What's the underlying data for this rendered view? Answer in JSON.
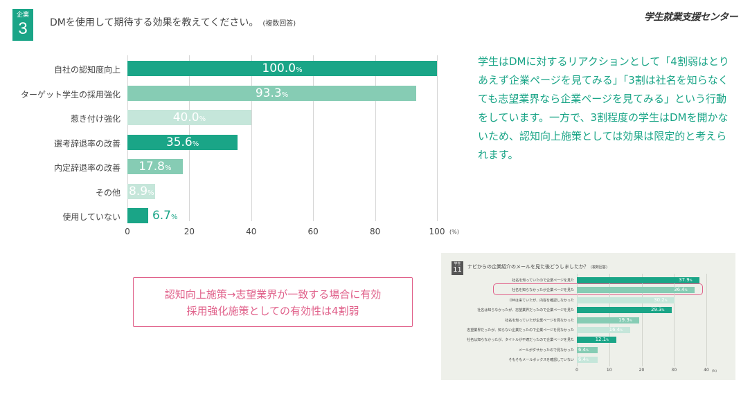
{
  "header": {
    "tag_label": "企業",
    "question_number": "3",
    "question_text": "DMを使用して期待する効果を教えてください。",
    "question_note": "(複数回答)",
    "brand": "学生就業支援センター"
  },
  "chart_data": [
    {
      "type": "bar",
      "orientation": "horizontal",
      "categories": [
        "自社の認知度向上",
        "ターゲット学生の採用強化",
        "惹き付け強化",
        "選考辞退率の改善",
        "内定辞退率の改善",
        "その他",
        "使用していない"
      ],
      "values": [
        100.0,
        93.3,
        40.0,
        35.6,
        17.8,
        8.9,
        6.7
      ],
      "value_labels": [
        "100.0",
        "93.3",
        "40.0",
        "35.6",
        "17.8",
        "8.9",
        "6.7"
      ],
      "percent_sign": "%",
      "bar_colors": [
        "#1aa587",
        "#86ccb4",
        "#c5e6da",
        "#1aa587",
        "#86ccb4",
        "#c5e6da",
        "#1aa587"
      ],
      "label_colors": [
        "#ffffff",
        "#ffffff",
        "#ffffff",
        "#ffffff",
        "#ffffff",
        "#ffffff",
        "#1aa587"
      ],
      "xlim": [
        0,
        100
      ],
      "ticks": [
        "0",
        "20",
        "40",
        "60",
        "80",
        "100"
      ],
      "tick_values": [
        0,
        20,
        40,
        60,
        80,
        100
      ],
      "unit": "(%)",
      "grid": true
    },
    {
      "type": "bar",
      "orientation": "horizontal",
      "tag_label": "学生",
      "question_number": "11",
      "title": "ナビからの企業紹介のメールを見た後どうしましたか？",
      "title_note": "(複数回答)",
      "categories": [
        "社名を知っていたので企業ページを見た",
        "社名を知らなかったが企業ページを見た",
        "DMは来ていたが、内容を確認しなかった",
        "社名は知らなかったが、志望業界だったので企業ページを見た",
        "社名を知っていたが企業ページを見なかった",
        "志望業界だったが、知らない企業だったので企業ページを見なかった",
        "社名は知らなかったが、タイトルが不適だったので企業ページを見た",
        "メールがダサかったので見なかった",
        "そもそもメールボックスを確認していない"
      ],
      "values": [
        37.9,
        36.4,
        30.2,
        29.3,
        19.3,
        16.4,
        12.1,
        6.4,
        6.4
      ],
      "value_labels": [
        "37.9",
        "36.4",
        "30.2",
        "29.3",
        "19.3",
        "16.4",
        "12.1",
        "6.4",
        "6.4"
      ],
      "percent_sign": "%",
      "bar_colors": [
        "#1aa587",
        "#86ccb4",
        "#c5e6da",
        "#1aa587",
        "#86ccb4",
        "#c5e6da",
        "#1aa587",
        "#86ccb4",
        "#c5e6da"
      ],
      "highlighted_index": 1,
      "xlim": [
        0,
        40
      ],
      "ticks": [
        "0",
        "10",
        "20",
        "30",
        "40"
      ],
      "tick_values": [
        0,
        10,
        20,
        30,
        40
      ],
      "unit": "(%)"
    }
  ],
  "comment": "学生はDMに対するリアクションとして「4割弱はとりあえず企業ページを見てみる」「3割は社名を知らなくても志望業界なら企業ページを見てみる」という行動をしています。一方で、3割程度の学生はDMを開かないため、認知向上施策としては効果は限定的と考えられます。",
  "callout": {
    "line1": "認知向上施策→志望業界が一致する場合に有効",
    "line2": "採用強化施策としての有効性は4割弱"
  },
  "colors": {
    "accent": "#1aa587",
    "mid": "#86ccb4",
    "light": "#c5e6da",
    "highlight": "#e0608a"
  }
}
